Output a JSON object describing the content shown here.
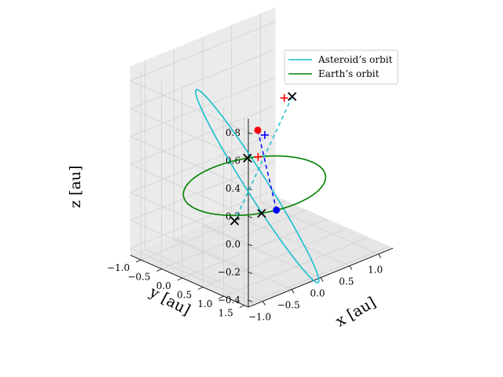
{
  "chart_data": {
    "type": "line",
    "projection": "3d",
    "title": "",
    "xlabel": "x [au]",
    "ylabel": "y [au]",
    "zlabel": "z [au]",
    "xlim": [
      -1.25,
      1.25
    ],
    "ylim": [
      -1.25,
      1.6
    ],
    "zlim": [
      -0.45,
      0.9
    ],
    "x_ticks": [
      "−1.0",
      "−0.5",
      "0.0",
      "0.5",
      "1.0"
    ],
    "y_ticks": [
      "1.5",
      "1.0",
      "0.5",
      "0.0",
      "−0.5",
      "−1.0"
    ],
    "z_ticks": [
      "0.8",
      "0.6",
      "0.4",
      "0.2",
      "0.0",
      "−0.2",
      "−0.4"
    ],
    "grid": true,
    "legend_position": "top-right",
    "legend": [
      {
        "label": "Asteroid’s orbit",
        "color": "#17becf"
      },
      {
        "label": "Earth’s orbit",
        "color": "#008000"
      }
    ],
    "series": [
      {
        "name": "Asteroid’s orbit",
        "color": "#17becf",
        "style": "solid",
        "orbit": {
          "a": 1.15,
          "e": 0.2,
          "inclination_deg": 40,
          "node_deg": 120,
          "perihelion_arg_deg": 20
        }
      },
      {
        "name": "Earth’s orbit",
        "color": "#008000",
        "style": "solid",
        "orbit": {
          "a": 1.0,
          "e": 0.0,
          "inclination_deg": 0,
          "node_deg": 0,
          "perihelion_arg_deg": 0
        }
      }
    ],
    "points": [
      {
        "kind": "Earth",
        "marker": "circle",
        "color": "#0000ff",
        "x": -0.3,
        "y": 0.95,
        "z": 0.0
      },
      {
        "kind": "Asteroid",
        "marker": "circle",
        "color": "#ff0000",
        "x": 0.45,
        "y": -0.55,
        "z": 0.25
      },
      {
        "kind": "node",
        "marker": "x",
        "color": "#000000",
        "x": -0.5,
        "y": 0.87,
        "z": 0.0
      },
      {
        "kind": "node",
        "marker": "x",
        "color": "#000000",
        "x": 0.5,
        "y": -0.87,
        "z": 0.0
      },
      {
        "kind": "extremum",
        "marker": "x",
        "color": "#000000",
        "x": -0.35,
        "y": 1.4,
        "z": 0.88
      },
      {
        "kind": "extremum",
        "marker": "x",
        "color": "#000000",
        "x": 0.3,
        "y": -0.9,
        "z": -0.42
      },
      {
        "kind": "reference",
        "marker": "+",
        "color": "#ff0000",
        "x": -0.45,
        "y": 1.35,
        "z": 0.88
      },
      {
        "kind": "reference",
        "marker": "+",
        "color": "#ff0000",
        "x": 0.62,
        "y": -0.78,
        "z": 0.0
      },
      {
        "kind": "reference",
        "marker": "+",
        "color": "#0000ff",
        "x": 0.5,
        "y": -0.45,
        "z": 0.22
      }
    ],
    "dashed_lines": [
      {
        "color": "#17becf",
        "from": [
          -0.35,
          1.4,
          0.88
        ],
        "to": [
          0.3,
          -0.9,
          -0.42
        ]
      },
      {
        "color": "#0000ff",
        "from": [
          -0.3,
          0.95,
          0.0
        ],
        "to": [
          0.45,
          -0.55,
          0.25
        ]
      }
    ]
  }
}
